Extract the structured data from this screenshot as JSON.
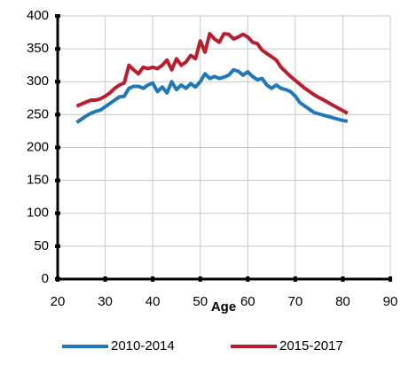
{
  "chart_data": {
    "type": "line",
    "xlabel": "Age",
    "x": [
      24,
      25,
      26,
      27,
      28,
      29,
      30,
      31,
      32,
      33,
      34,
      35,
      36,
      37,
      38,
      39,
      40,
      41,
      42,
      43,
      44,
      45,
      46,
      47,
      48,
      49,
      50,
      51,
      52,
      53,
      54,
      55,
      56,
      57,
      58,
      59,
      60,
      61,
      62,
      63,
      64,
      65,
      66,
      67,
      68,
      69,
      70,
      71,
      72,
      73,
      74,
      75,
      76,
      77,
      78,
      79,
      80,
      81
    ],
    "series": [
      {
        "name": "2010-2014",
        "color": "#1f78b8",
        "values": [
          238,
          243,
          248,
          252,
          255,
          257,
          262,
          267,
          272,
          277,
          278,
          290,
          293,
          293,
          290,
          295,
          298,
          285,
          292,
          283,
          300,
          288,
          295,
          290,
          297,
          292,
          300,
          312,
          305,
          308,
          305,
          307,
          310,
          318,
          316,
          310,
          315,
          308,
          303,
          305,
          295,
          290,
          295,
          290,
          288,
          285,
          278,
          268,
          263,
          258,
          253,
          251,
          249,
          247,
          245,
          243,
          241,
          240
        ]
      },
      {
        "name": "2015-2017",
        "color": "#b81f2e",
        "values": [
          263,
          266,
          269,
          272,
          272,
          274,
          278,
          283,
          290,
          295,
          298,
          325,
          318,
          312,
          322,
          320,
          322,
          320,
          325,
          333,
          318,
          335,
          325,
          330,
          340,
          335,
          362,
          345,
          373,
          365,
          360,
          373,
          372,
          365,
          368,
          372,
          368,
          360,
          358,
          348,
          343,
          338,
          333,
          322,
          315,
          308,
          302,
          296,
          290,
          285,
          280,
          276,
          272,
          268,
          264,
          260,
          256,
          252
        ]
      }
    ],
    "xlim": [
      20,
      90
    ],
    "xticks": [
      20,
      30,
      40,
      50,
      60,
      70,
      80,
      90
    ],
    "ylim": [
      0,
      400
    ],
    "yticks": [
      0,
      50,
      100,
      150,
      200,
      250,
      300,
      350,
      400
    ],
    "grid": true,
    "legend": "bottom"
  }
}
